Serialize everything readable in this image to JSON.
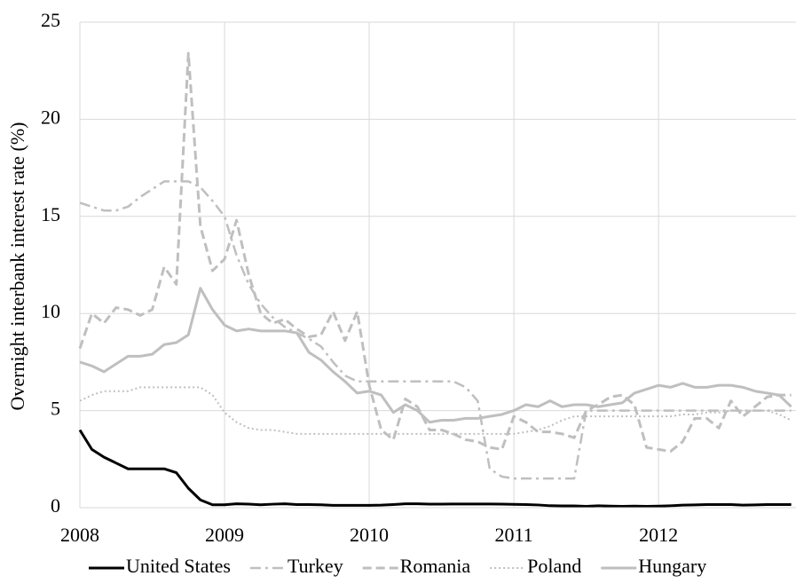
{
  "chart_data": {
    "type": "line",
    "y_label": "Overnight interbank interest rate (%)",
    "x": [
      2008,
      2008.083,
      2008.167,
      2008.25,
      2008.333,
      2008.417,
      2008.5,
      2008.583,
      2008.667,
      2008.75,
      2008.833,
      2008.917,
      2009,
      2009.083,
      2009.167,
      2009.25,
      2009.333,
      2009.417,
      2009.5,
      2009.583,
      2009.667,
      2009.75,
      2009.833,
      2009.917,
      2010,
      2010.083,
      2010.167,
      2010.25,
      2010.333,
      2010.417,
      2010.5,
      2010.583,
      2010.667,
      2010.75,
      2010.833,
      2010.917,
      2011,
      2011.083,
      2011.167,
      2011.25,
      2011.333,
      2011.417,
      2011.5,
      2011.583,
      2011.667,
      2011.75,
      2011.833,
      2011.917,
      2012,
      2012.083,
      2012.167,
      2012.25,
      2012.333,
      2012.417,
      2012.5,
      2012.583,
      2012.667,
      2012.75,
      2012.833,
      2012.917
    ],
    "xlim": [
      2008,
      2012.95
    ],
    "xticks": [
      2008,
      2009,
      2010,
      2011,
      2012
    ],
    "ylim": [
      0,
      25
    ],
    "yticks": [
      0,
      5,
      10,
      15,
      20,
      25
    ],
    "grid": true,
    "legend": "bottom",
    "series": [
      {
        "name": "United States",
        "color": "#000000",
        "style": "solid",
        "values": [
          4.0,
          3.0,
          2.6,
          2.3,
          2.0,
          2.0,
          2.0,
          2.0,
          1.8,
          1.0,
          0.4,
          0.15,
          0.15,
          0.2,
          0.18,
          0.15,
          0.18,
          0.2,
          0.16,
          0.16,
          0.15,
          0.12,
          0.12,
          0.12,
          0.12,
          0.13,
          0.16,
          0.2,
          0.2,
          0.18,
          0.18,
          0.19,
          0.19,
          0.19,
          0.19,
          0.18,
          0.17,
          0.16,
          0.14,
          0.1,
          0.09,
          0.09,
          0.07,
          0.1,
          0.08,
          0.07,
          0.08,
          0.07,
          0.08,
          0.1,
          0.13,
          0.14,
          0.16,
          0.16,
          0.16,
          0.13,
          0.14,
          0.16,
          0.16,
          0.16
        ]
      },
      {
        "name": "Turkey",
        "color": "#bfbfbf",
        "style": "dashdot",
        "values": [
          15.7,
          15.5,
          15.3,
          15.3,
          15.5,
          16.0,
          16.4,
          16.8,
          16.8,
          16.8,
          16.5,
          15.8,
          15.0,
          13.0,
          11.5,
          10.5,
          9.8,
          9.3,
          9.0,
          8.7,
          8.3,
          7.5,
          6.8,
          6.5,
          6.5,
          6.5,
          6.5,
          6.5,
          6.5,
          6.5,
          6.5,
          6.5,
          6.2,
          5.5,
          2.0,
          1.6,
          1.5,
          1.5,
          1.5,
          1.5,
          1.5,
          1.5,
          5.0,
          5.0,
          5.0,
          5.0,
          5.0,
          5.0,
          5.0,
          5.0,
          5.0,
          5.0,
          5.0,
          5.0,
          5.0,
          5.0,
          5.0,
          5.0,
          5.0,
          5.0
        ]
      },
      {
        "name": "Romania",
        "color": "#bfbfbf",
        "style": "dashed",
        "values": [
          8.2,
          10.0,
          9.5,
          10.3,
          10.2,
          9.9,
          10.2,
          12.4,
          11.5,
          23.4,
          14.5,
          12.2,
          12.8,
          14.8,
          12.0,
          10.0,
          9.5,
          9.7,
          9.2,
          8.8,
          8.9,
          10.1,
          8.6,
          10.1,
          6.3,
          4.0,
          3.5,
          5.6,
          5.2,
          4.0,
          4.0,
          3.8,
          3.5,
          3.4,
          3.1,
          3.0,
          4.7,
          4.4,
          3.9,
          3.9,
          3.8,
          3.6,
          5.0,
          5.3,
          5.7,
          5.8,
          5.3,
          3.1,
          3.0,
          2.9,
          3.4,
          4.6,
          4.6,
          4.1,
          5.5,
          4.7,
          5.2,
          5.7,
          5.8,
          5.8
        ]
      },
      {
        "name": "Poland",
        "color": "#bfbfbf",
        "style": "dotted",
        "values": [
          5.5,
          5.8,
          6.0,
          6.0,
          6.0,
          6.2,
          6.2,
          6.2,
          6.2,
          6.2,
          6.2,
          5.8,
          4.9,
          4.4,
          4.1,
          4.0,
          4.0,
          3.9,
          3.8,
          3.8,
          3.8,
          3.8,
          3.8,
          3.8,
          3.8,
          3.8,
          3.8,
          3.8,
          3.8,
          3.8,
          3.8,
          3.8,
          3.8,
          3.8,
          3.8,
          3.8,
          3.8,
          3.9,
          4.0,
          4.2,
          4.5,
          4.7,
          4.7,
          4.7,
          4.7,
          4.7,
          4.7,
          4.7,
          4.7,
          4.7,
          4.8,
          4.8,
          4.9,
          4.9,
          5.0,
          5.0,
          5.0,
          5.0,
          4.8,
          4.5
        ]
      },
      {
        "name": "Hungary",
        "color": "#bfbfbf",
        "style": "solid",
        "values": [
          7.5,
          7.3,
          7.0,
          7.4,
          7.8,
          7.8,
          7.9,
          8.4,
          8.5,
          8.9,
          11.3,
          10.2,
          9.4,
          9.1,
          9.2,
          9.1,
          9.1,
          9.1,
          9.0,
          8.0,
          7.6,
          7.0,
          6.5,
          5.9,
          6.0,
          5.8,
          4.9,
          5.3,
          5.0,
          4.4,
          4.5,
          4.5,
          4.6,
          4.6,
          4.7,
          4.8,
          5.0,
          5.3,
          5.2,
          5.5,
          5.2,
          5.3,
          5.3,
          5.2,
          5.3,
          5.4,
          5.9,
          6.1,
          6.3,
          6.2,
          6.4,
          6.2,
          6.2,
          6.3,
          6.3,
          6.2,
          6.0,
          5.9,
          5.8,
          5.2
        ]
      }
    ]
  }
}
